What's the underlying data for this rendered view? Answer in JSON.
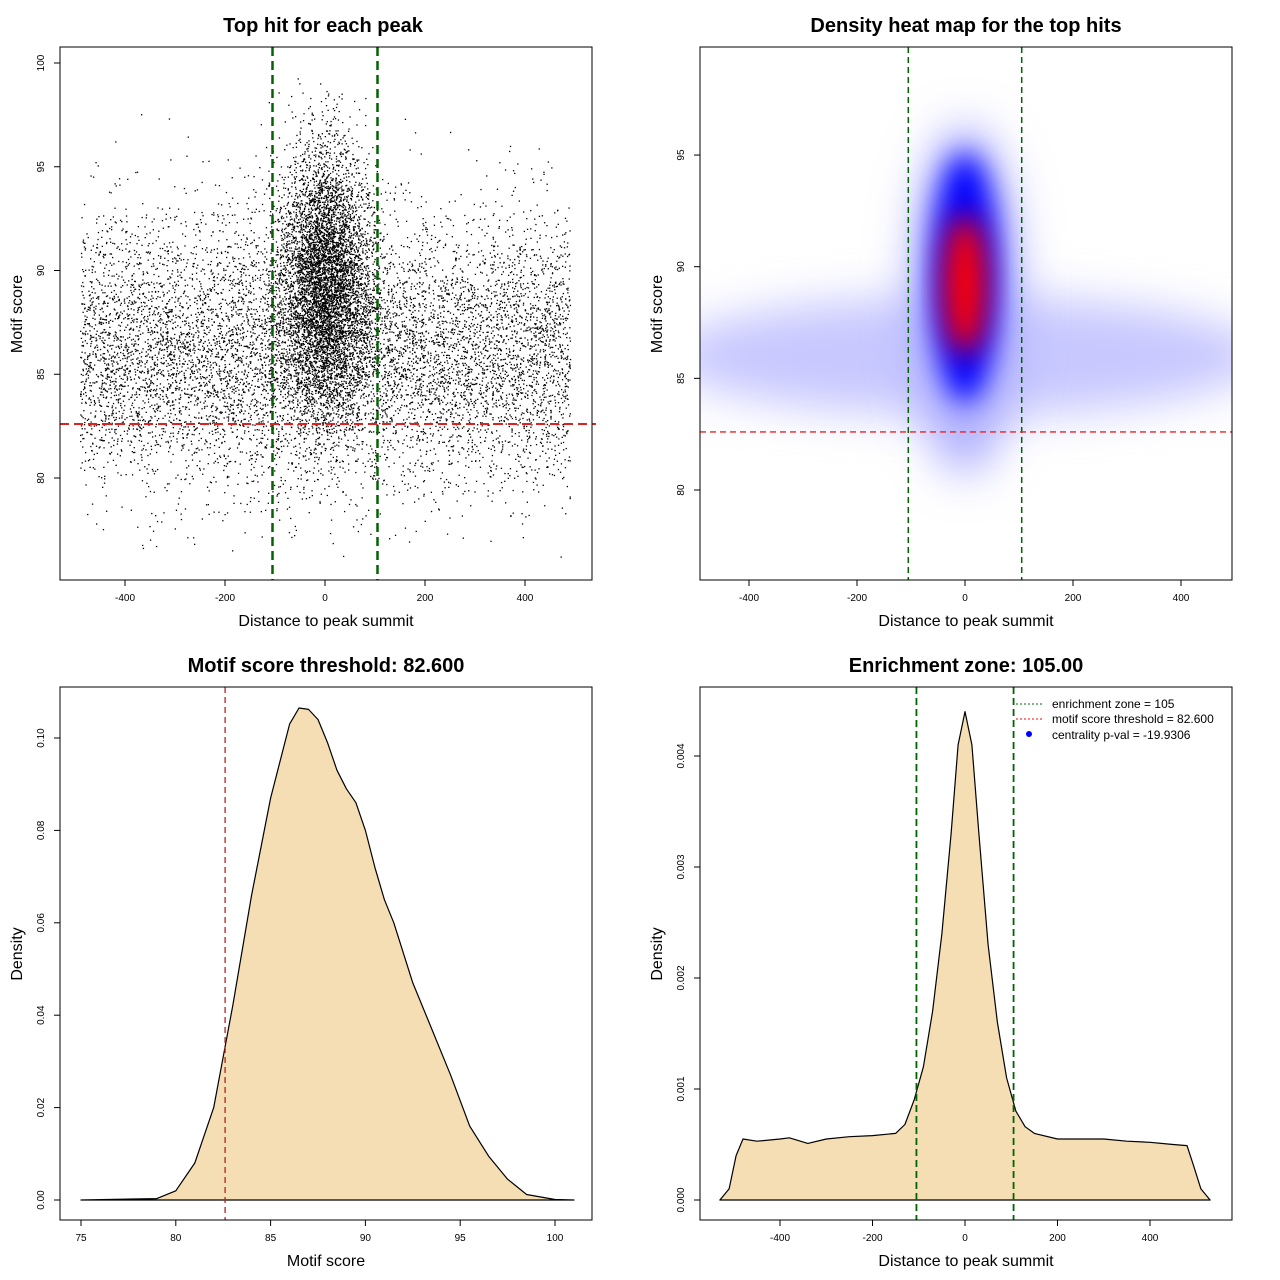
{
  "chart_data": [
    {
      "type": "scatter",
      "title": "Top hit for each peak",
      "xlabel": "Distance to peak summit",
      "ylabel": "Motif score",
      "xlim": [
        -500,
        500
      ],
      "ylim": [
        75,
        100
      ],
      "xticks": [
        -400,
        -200,
        0,
        200,
        400
      ],
      "yticks": [
        80,
        85,
        90,
        95,
        100
      ],
      "enrichment_zone": 105,
      "threshold": 82.6,
      "description_points": "~20000 points; background uniform in x, score ~N(86,3); central enrichment within ±105"
    },
    {
      "type": "heatmap",
      "title": "Density heat map for the top hits",
      "xlabel": "Distance to peak summit",
      "ylabel": "Motif score",
      "xlim": [
        -500,
        500
      ],
      "ylim": [
        75,
        100
      ],
      "xticks": [
        -400,
        -200,
        0,
        200,
        400
      ],
      "yticks": [
        80,
        85,
        90,
        95
      ],
      "enrichment_zone": 105,
      "threshold": 82.6,
      "peak": {
        "x": 0,
        "y": 89.5
      },
      "colors": [
        "#ffffff",
        "#0000ff",
        "#ff0000"
      ]
    },
    {
      "type": "area",
      "title": "Motif score threshold: 82.600",
      "xlabel": "Motif score",
      "ylabel": "Density",
      "xlim": [
        75,
        101
      ],
      "ylim": [
        0,
        0.11
      ],
      "xticks": [
        75,
        80,
        85,
        90,
        95,
        100
      ],
      "yticks": [
        0.0,
        0.02,
        0.04,
        0.06,
        0.08,
        0.1
      ],
      "threshold": 82.6,
      "x": [
        75,
        79,
        80,
        81,
        82,
        83,
        84,
        85,
        86,
        86.5,
        87,
        87.5,
        88,
        88.5,
        89,
        89.5,
        90,
        90.5,
        91,
        91.5,
        92.5,
        93.5,
        94.5,
        95.5,
        96.5,
        97.5,
        98.5,
        100,
        101
      ],
      "y": [
        0,
        0.0003,
        0.002,
        0.008,
        0.02,
        0.042,
        0.066,
        0.087,
        0.103,
        0.1065,
        0.1062,
        0.104,
        0.099,
        0.093,
        0.089,
        0.086,
        0.08,
        0.072,
        0.065,
        0.06,
        0.047,
        0.037,
        0.027,
        0.016,
        0.0095,
        0.0045,
        0.0012,
        0.0001,
        0
      ]
    },
    {
      "type": "area",
      "title": "Enrichment zone: 105.00",
      "xlabel": "Distance to peak summit",
      "ylabel": "Density",
      "xlim": [
        -550,
        550
      ],
      "ylim": [
        0,
        0.0045
      ],
      "xticks": [
        -400,
        -200,
        0,
        200,
        400
      ],
      "yticks": [
        0.0,
        0.001,
        0.002,
        0.003,
        0.004
      ],
      "enrichment_zone": 105,
      "x": [
        -530,
        -510,
        -495,
        -480,
        -450,
        -400,
        -380,
        -340,
        -300,
        -250,
        -200,
        -150,
        -130,
        -110,
        -90,
        -70,
        -50,
        -30,
        -15,
        0,
        15,
        30,
        50,
        70,
        90,
        110,
        130,
        150,
        200,
        250,
        300,
        350,
        400,
        450,
        480,
        495,
        510,
        530
      ],
      "y": [
        0,
        0.0001,
        0.0004,
        0.00055,
        0.00053,
        0.00055,
        0.00056,
        0.00051,
        0.00055,
        0.00057,
        0.00058,
        0.0006,
        0.00068,
        0.0009,
        0.0012,
        0.0017,
        0.0024,
        0.0033,
        0.0041,
        0.0044,
        0.0041,
        0.0033,
        0.0023,
        0.0016,
        0.0011,
        0.0008,
        0.00066,
        0.0006,
        0.00055,
        0.00055,
        0.00055,
        0.00053,
        0.00052,
        0.0005,
        0.00049,
        0.0003,
        0.0001,
        0
      ],
      "legend": {
        "position": "top-right",
        "items": [
          {
            "label": "enrichment zone = 105",
            "color": "#006400"
          },
          {
            "label": "motif score threshold = 82.600",
            "color": "#ff0000"
          },
          {
            "label": "centrality p-val = -19.9306",
            "color": "#0000ff"
          }
        ]
      }
    }
  ]
}
